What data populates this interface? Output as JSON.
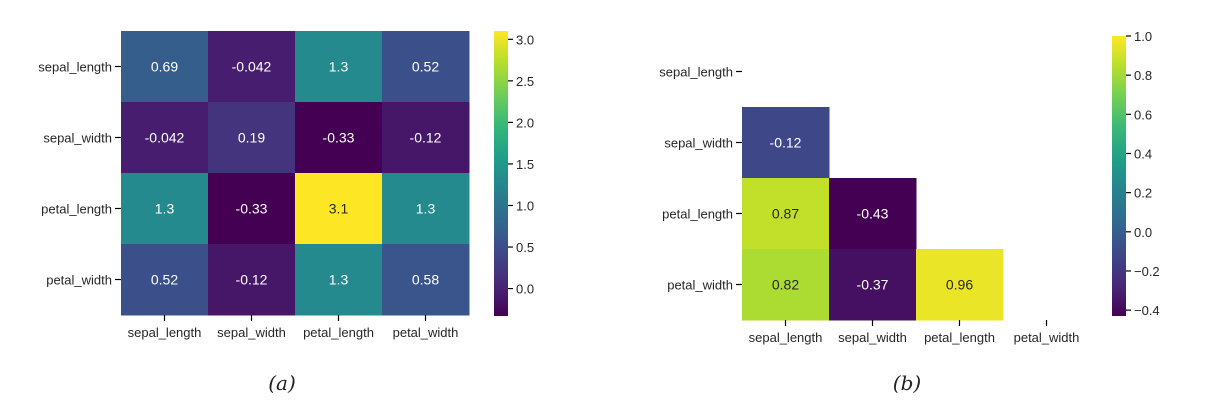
{
  "figure": {
    "captions": [
      "(a)",
      "(b)"
    ]
  },
  "colormap": {
    "name": "viridis",
    "stops": [
      "#440154",
      "#482878",
      "#3e4989",
      "#31688e",
      "#26828e",
      "#1f9e89",
      "#35b779",
      "#6ece58",
      "#b5de2b",
      "#fde725"
    ]
  },
  "chart_data": [
    {
      "type": "heatmap",
      "caption": "(a)",
      "title": "",
      "rows": [
        "sepal_length",
        "sepal_width",
        "petal_length",
        "petal_width"
      ],
      "cols": [
        "sepal_length",
        "sepal_width",
        "petal_length",
        "petal_width"
      ],
      "values": [
        [
          0.69,
          -0.042,
          1.3,
          0.52
        ],
        [
          -0.042,
          0.19,
          -0.33,
          -0.12
        ],
        [
          1.3,
          -0.33,
          3.1,
          1.3
        ],
        [
          0.52,
          -0.12,
          1.3,
          0.58
        ]
      ],
      "labels": [
        [
          "0.69",
          "-0.042",
          "1.3",
          "0.52"
        ],
        [
          "-0.042",
          "0.19",
          "-0.33",
          "-0.12"
        ],
        [
          "1.3",
          "-0.33",
          "3.1",
          "1.3"
        ],
        [
          "0.52",
          "-0.12",
          "1.3",
          "0.58"
        ]
      ],
      "colorbar": {
        "vmin": -0.33,
        "vmax": 3.1,
        "ticks": [
          0.0,
          0.5,
          1.0,
          1.5,
          2.0,
          2.5,
          3.0
        ],
        "tick_labels": [
          "0.0",
          "0.5",
          "1.0",
          "1.5",
          "2.0",
          "2.5",
          "3.0"
        ]
      },
      "mask_upper": false
    },
    {
      "type": "heatmap",
      "caption": "(b)",
      "title": "",
      "rows": [
        "sepal_length",
        "sepal_width",
        "petal_length",
        "petal_width"
      ],
      "cols": [
        "sepal_length",
        "sepal_width",
        "petal_length",
        "petal_width"
      ],
      "values": [
        [
          null,
          null,
          null,
          null
        ],
        [
          -0.12,
          null,
          null,
          null
        ],
        [
          0.87,
          -0.43,
          null,
          null
        ],
        [
          0.82,
          -0.37,
          0.96,
          null
        ]
      ],
      "labels": [
        [
          null,
          null,
          null,
          null
        ],
        [
          "-0.12",
          null,
          null,
          null
        ],
        [
          "0.87",
          "-0.43",
          null,
          null
        ],
        [
          "0.82",
          "-0.37",
          "0.96",
          null
        ]
      ],
      "colorbar": {
        "vmin": -0.43,
        "vmax": 1.0,
        "ticks": [
          -0.4,
          -0.2,
          0.0,
          0.2,
          0.4,
          0.6,
          0.8,
          1.0
        ],
        "tick_labels": [
          "−0.4",
          "−0.2",
          "0.0",
          "0.2",
          "0.4",
          "0.6",
          "0.8",
          "1.0"
        ]
      },
      "mask_upper": true
    }
  ]
}
